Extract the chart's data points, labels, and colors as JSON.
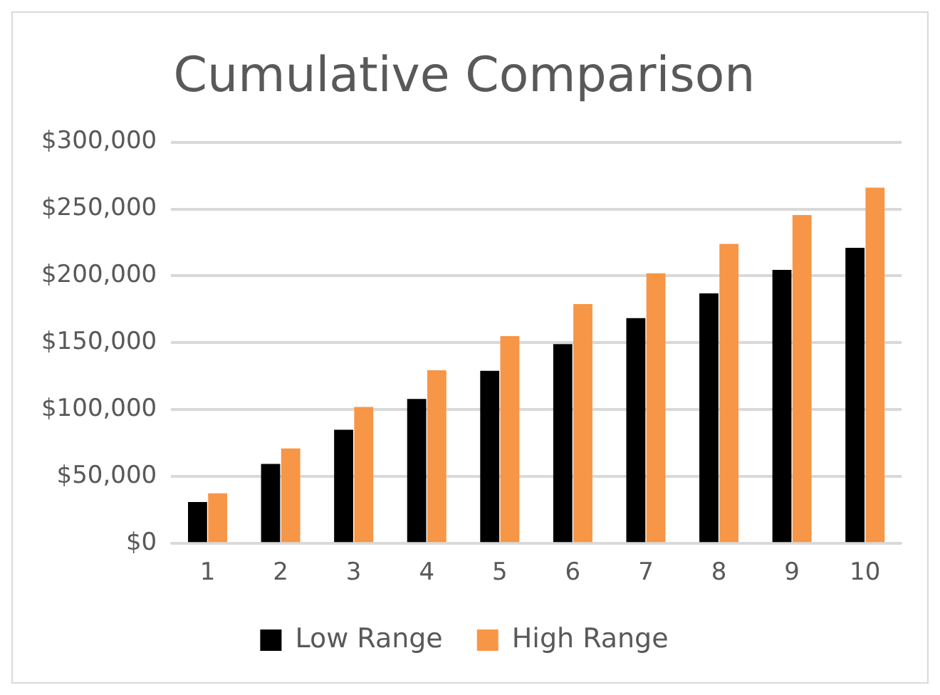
{
  "chart_data": {
    "type": "bar",
    "title": "Cumulative Comparison",
    "categories": [
      "1",
      "2",
      "3",
      "4",
      "5",
      "6",
      "7",
      "8",
      "9",
      "10"
    ],
    "series": [
      {
        "name": "Low Range",
        "color": "#000000",
        "values": [
          31000,
          59500,
          85000,
          108000,
          129000,
          149000,
          168500,
          187000,
          204500,
          221000
        ]
      },
      {
        "name": "High Range",
        "color": "#f79646",
        "values": [
          37500,
          71000,
          102000,
          129500,
          155000,
          179000,
          202000,
          224000,
          245500,
          266000
        ]
      }
    ],
    "ylim": [
      0,
      300000
    ],
    "yticks": [
      {
        "value": 0,
        "label": "$0"
      },
      {
        "value": 50000,
        "label": "$50,000"
      },
      {
        "value": 100000,
        "label": "$100,000"
      },
      {
        "value": 150000,
        "label": "$150,000"
      },
      {
        "value": 200000,
        "label": "$200,000"
      },
      {
        "value": 250000,
        "label": "$250,000"
      },
      {
        "value": 300000,
        "label": "$300,000"
      }
    ],
    "grid": "y",
    "legend": "bottom"
  }
}
